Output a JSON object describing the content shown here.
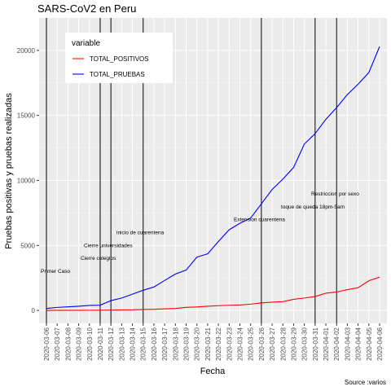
{
  "chart_data": {
    "type": "line",
    "title": "SARS-CoV2 en Peru",
    "xlabel": "Fecha",
    "ylabel": "Pruebas positivas y pruebas realizadas",
    "caption": "Source :varios",
    "ylim": [
      -1000,
      22500
    ],
    "yticks": [
      0,
      5000,
      10000,
      15000,
      20000
    ],
    "ytick_labels": [
      "0",
      "5000",
      "10000",
      "15000",
      "20000"
    ],
    "x": [
      "2020-03-06",
      "2020-03-07",
      "2020-03-08",
      "2020-03-09",
      "2020-03-10",
      "2020-03-11",
      "2020-03-12",
      "2020-03-13",
      "2020-03-14",
      "2020-03-15",
      "2020-03-16",
      "2020-03-17",
      "2020-03-18",
      "2020-03-19",
      "2020-03-20",
      "2020-03-21",
      "2020-03-22",
      "2020-03-23",
      "2020-03-24",
      "2020-03-25",
      "2020-03-26",
      "2020-03-27",
      "2020-03-28",
      "2020-03-29",
      "2020-03-30",
      "2020-03-31",
      "2020-04-01",
      "2020-04-02",
      "2020-04-03",
      "2020-04-04",
      "2020-04-05",
      "2020-04-06"
    ],
    "legend": {
      "title": "variable",
      "position": "top-left"
    },
    "grid": true,
    "series": [
      {
        "name": "TOTAL_POSITIVOS",
        "color": "#ff0000",
        "values": [
          1,
          6,
          7,
          9,
          11,
          17,
          22,
          38,
          43,
          71,
          86,
          117,
          145,
          234,
          263,
          318,
          363,
          395,
          416,
          480,
          580,
          635,
          671,
          852,
          950,
          1065,
          1323,
          1414,
          1595,
          1746,
          2281,
          2561
        ]
      },
      {
        "name": "TOTAL_PRUEBAS",
        "color": "#0000ff",
        "values": [
          150,
          230,
          270,
          320,
          380,
          400,
          750,
          950,
          1250,
          1550,
          1800,
          2300,
          2800,
          3100,
          4100,
          4350,
          5300,
          6200,
          6700,
          7100,
          8200,
          9300,
          10100,
          11000,
          12800,
          13600,
          14700,
          15600,
          16600,
          17400,
          18300,
          20300
        ]
      }
    ],
    "events": [
      {
        "date": "2020-03-06",
        "label": "Primer Caso"
      },
      {
        "date": "2020-03-11",
        "label": "Cierre colegios"
      },
      {
        "date": "2020-03-12",
        "label": "Cierre universidades"
      },
      {
        "date": "2020-03-15",
        "label": "inicio de cuarentena"
      },
      {
        "date": "2020-03-26",
        "label": "Extension cuarentena"
      },
      {
        "date": "2020-03-31",
        "label": "toque de queda 18pm-5am"
      },
      {
        "date": "2020-04-02",
        "label": "Restriccion por sexo"
      }
    ],
    "colors": {
      "panel": "#ebebeb",
      "grid_major": "#ffffff",
      "grid_minor": "#f5f5f5",
      "event_line": "#000000"
    }
  }
}
